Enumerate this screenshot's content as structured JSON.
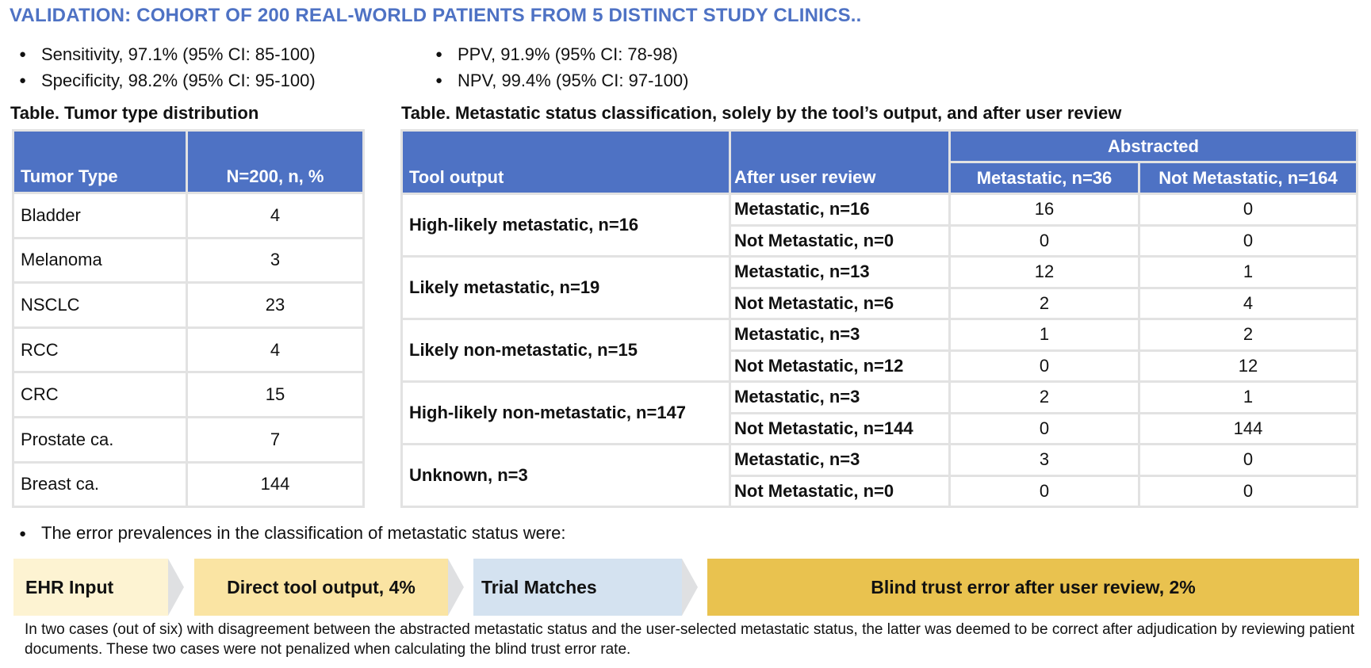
{
  "title": "VALIDATION: COHORT OF 200 REAL-WORLD PATIENTS FROM 5 DISTINCT STUDY CLINICS..",
  "metrics_left": [
    "Sensitivity, 97.1% (95% CI: 85-100)",
    "Specificity, 98.2% (95% CI: 95-100)"
  ],
  "metrics_right": [
    "PPV, 91.9% (95% CI: 78-98)",
    "NPV, 99.4% (95% CI: 97-100)"
  ],
  "bullet_glyph": "●",
  "tumor_table": {
    "caption": "Table. Tumor type distribution",
    "headers": [
      "Tumor Type",
      "N=200, n, %"
    ],
    "rows": [
      [
        "Bladder",
        "4"
      ],
      [
        "Melanoma",
        "3"
      ],
      [
        "NSCLC",
        "23"
      ],
      [
        "RCC",
        "4"
      ],
      [
        "CRC",
        "15"
      ],
      [
        "Prostate ca.",
        "7"
      ],
      [
        "Breast ca.",
        "144"
      ]
    ]
  },
  "meta_table": {
    "caption": "Table. Metastatic status classification, solely by the tool’s output, and after user review",
    "header_tool": "Tool output",
    "header_review": "After user review",
    "header_group": "Abstracted",
    "header_metastatic": "Metastatic, n=36",
    "header_not_metastatic": "Not Metastatic, n=164",
    "groups": [
      {
        "tool": "High-likely metastatic, n=16",
        "rows": [
          {
            "review": "Metastatic, n=16",
            "m": "16",
            "nm": "0"
          },
          {
            "review": "Not Metastatic, n=0",
            "m": "0",
            "nm": "0"
          }
        ]
      },
      {
        "tool": "Likely metastatic, n=19",
        "rows": [
          {
            "review": "Metastatic, n=13",
            "m": "12",
            "nm": "1"
          },
          {
            "review": "Not Metastatic, n=6",
            "m": "2",
            "nm": "4"
          }
        ]
      },
      {
        "tool": "Likely non-metastatic, n=15",
        "rows": [
          {
            "review": "Metastatic, n=3",
            "m": "1",
            "nm": "2"
          },
          {
            "review": "Not Metastatic, n=12",
            "m": "0",
            "nm": "12"
          }
        ]
      },
      {
        "tool": "High-likely non-metastatic, n=147",
        "rows": [
          {
            "review": "Metastatic, n=3",
            "m": "2",
            "nm": "1"
          },
          {
            "review": "Not Metastatic, n=144",
            "m": "0",
            "nm": "144"
          }
        ]
      },
      {
        "tool": "Unknown, n=3",
        "rows": [
          {
            "review": "Metastatic, n=3",
            "m": "3",
            "nm": "0"
          },
          {
            "review": "Not Metastatic, n=0",
            "m": "0",
            "nm": "0"
          }
        ]
      }
    ]
  },
  "error_intro": "The error prevalences in the classification of metastatic status were:",
  "flow": {
    "ehr_input": "EHR Input",
    "direct_output": "Direct tool output, 4%",
    "trial_matches": "Trial Matches",
    "blind_trust": "Blind trust error after user review, 2%"
  },
  "colors": {
    "title": "#4e72c4",
    "table_header": "#4e72c4",
    "ehr_box": "#fdf3d2",
    "direct_box": "#fae4a3",
    "trial_box": "#d4e2f0",
    "blind_box": "#e9c24f"
  },
  "footnote": "In two cases (out of six) with disagreement between the abstracted metastatic status and the user-selected metastatic status, the latter was deemed to be correct after adjudication by reviewing patient documents. These two cases were not penalized when calculating the blind trust error rate."
}
